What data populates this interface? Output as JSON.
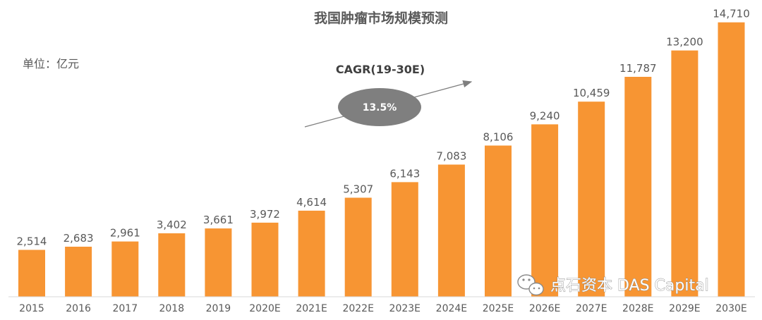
{
  "chart_data": {
    "type": "bar",
    "title": "我国肿瘤市场规模预测",
    "unit_label": "单位：亿元",
    "categories": [
      "2015",
      "2016",
      "2017",
      "2018",
      "2019",
      "2020E",
      "2021E",
      "2022E",
      "2023E",
      "2024E",
      "2025E",
      "2026E",
      "2027E",
      "2028E",
      "2029E",
      "2030E"
    ],
    "values": [
      2514,
      2683,
      2961,
      3402,
      3661,
      3972,
      4614,
      5307,
      6143,
      7083,
      8106,
      9240,
      10459,
      11787,
      13200,
      14710
    ],
    "value_labels": [
      "2,514",
      "2,683",
      "2,961",
      "3,402",
      "3,661",
      "3,972",
      "4,614",
      "5,307",
      "6,143",
      "7,083",
      "8,106",
      "9,240",
      "10,459",
      "11,787",
      "13,200",
      "14,710"
    ],
    "ylim": [
      0,
      15000
    ],
    "bar_color": "#F79533",
    "grid": false,
    "annotation": {
      "label": "CAGR(19-30E)",
      "value": "13.5%",
      "ellipse_color": "#7F7F7F",
      "arrow_color": "#7F7F7F"
    }
  },
  "watermark": {
    "text": "点石资本 DAS Capital",
    "icon": "wechat-icon"
  }
}
